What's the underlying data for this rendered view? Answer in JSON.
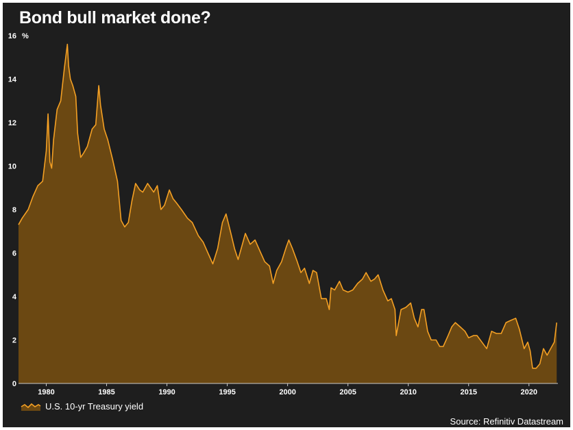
{
  "title": "Bond bull market done?",
  "source": "Source: Refinitiv Datastream",
  "colors": {
    "background": "#1e1e1e",
    "line": "#f4a024",
    "fill": "#6b4812",
    "text": "#ffffff"
  },
  "chart_data": {
    "type": "area",
    "title": "Bond bull market done?",
    "ylabel": "%",
    "xlabel": "",
    "ylim": [
      0,
      16
    ],
    "xlim": [
      1977.7,
      2022.4
    ],
    "yticks": [
      "0",
      "2",
      "4",
      "6",
      "8",
      "10",
      "12",
      "14",
      "16"
    ],
    "xticks": [
      "1980",
      "1985",
      "1990",
      "1995",
      "2000",
      "2005",
      "2010",
      "2015",
      "2020"
    ],
    "grid": false,
    "legend": "bottom-left",
    "series": [
      {
        "name": "U.S. 10-yr Treasury yield",
        "x": [
          1977.7,
          1978.0,
          1978.5,
          1978.9,
          1979.3,
          1979.7,
          1980.0,
          1980.15,
          1980.3,
          1980.45,
          1980.6,
          1980.9,
          1981.2,
          1981.5,
          1981.75,
          1981.85,
          1982.0,
          1982.2,
          1982.45,
          1982.6,
          1982.85,
          1983.1,
          1983.4,
          1983.8,
          1984.1,
          1984.35,
          1984.5,
          1984.8,
          1985.1,
          1985.5,
          1985.9,
          1986.2,
          1986.5,
          1986.8,
          1987.1,
          1987.4,
          1987.75,
          1988.0,
          1988.4,
          1988.9,
          1989.2,
          1989.5,
          1989.8,
          1990.2,
          1990.5,
          1990.8,
          1991.2,
          1991.7,
          1992.1,
          1992.6,
          1993.0,
          1993.4,
          1993.8,
          1994.2,
          1994.6,
          1994.9,
          1995.3,
          1995.6,
          1995.9,
          1996.3,
          1996.5,
          1996.9,
          1997.3,
          1997.7,
          1998.1,
          1998.5,
          1998.8,
          1999.1,
          1999.5,
          1999.9,
          2000.1,
          2000.4,
          2000.8,
          2001.1,
          2001.4,
          2001.8,
          2002.1,
          2002.4,
          2002.8,
          2003.2,
          2003.45,
          2003.6,
          2003.9,
          2004.3,
          2004.6,
          2005.0,
          2005.4,
          2005.8,
          2006.2,
          2006.5,
          2006.9,
          2007.2,
          2007.5,
          2007.9,
          2008.3,
          2008.6,
          2008.9,
          2009.0,
          2009.4,
          2009.8,
          2010.2,
          2010.5,
          2010.8,
          2011.1,
          2011.3,
          2011.6,
          2011.9,
          2012.3,
          2012.6,
          2012.9,
          2013.3,
          2013.6,
          2013.9,
          2014.3,
          2014.7,
          2015.0,
          2015.4,
          2015.7,
          2016.1,
          2016.5,
          2016.9,
          2017.3,
          2017.7,
          2018.1,
          2018.5,
          2018.9,
          2019.2,
          2019.6,
          2019.9,
          2020.1,
          2020.3,
          2020.6,
          2020.9,
          2021.2,
          2021.5,
          2021.8,
          2022.1,
          2022.3
        ],
        "values": [
          7.3,
          7.6,
          8.0,
          8.6,
          9.1,
          9.3,
          10.7,
          12.4,
          10.2,
          9.9,
          11.2,
          12.6,
          13.0,
          14.5,
          15.6,
          14.6,
          14.0,
          13.7,
          13.2,
          11.5,
          10.4,
          10.6,
          10.9,
          11.7,
          11.9,
          13.7,
          12.8,
          11.7,
          11.2,
          10.3,
          9.3,
          7.5,
          7.2,
          7.4,
          8.4,
          9.2,
          8.9,
          8.8,
          9.2,
          8.8,
          9.1,
          8.0,
          8.2,
          8.9,
          8.5,
          8.3,
          8.0,
          7.6,
          7.4,
          6.8,
          6.5,
          6.0,
          5.5,
          6.2,
          7.4,
          7.8,
          6.9,
          6.2,
          5.7,
          6.5,
          6.9,
          6.4,
          6.6,
          6.1,
          5.6,
          5.4,
          4.6,
          5.2,
          5.6,
          6.3,
          6.6,
          6.2,
          5.6,
          5.1,
          5.3,
          4.6,
          5.2,
          5.1,
          3.9,
          3.9,
          3.4,
          4.4,
          4.3,
          4.7,
          4.3,
          4.2,
          4.3,
          4.6,
          4.8,
          5.1,
          4.7,
          4.8,
          5.0,
          4.3,
          3.8,
          3.9,
          3.4,
          2.2,
          3.4,
          3.5,
          3.7,
          3.0,
          2.6,
          3.4,
          3.4,
          2.4,
          2.0,
          2.0,
          1.7,
          1.7,
          2.2,
          2.6,
          2.8,
          2.6,
          2.4,
          2.1,
          2.2,
          2.2,
          1.9,
          1.6,
          2.4,
          2.3,
          2.3,
          2.8,
          2.9,
          3.0,
          2.5,
          1.6,
          1.9,
          1.5,
          0.7,
          0.7,
          0.9,
          1.6,
          1.3,
          1.6,
          1.9,
          2.8
        ]
      }
    ]
  }
}
